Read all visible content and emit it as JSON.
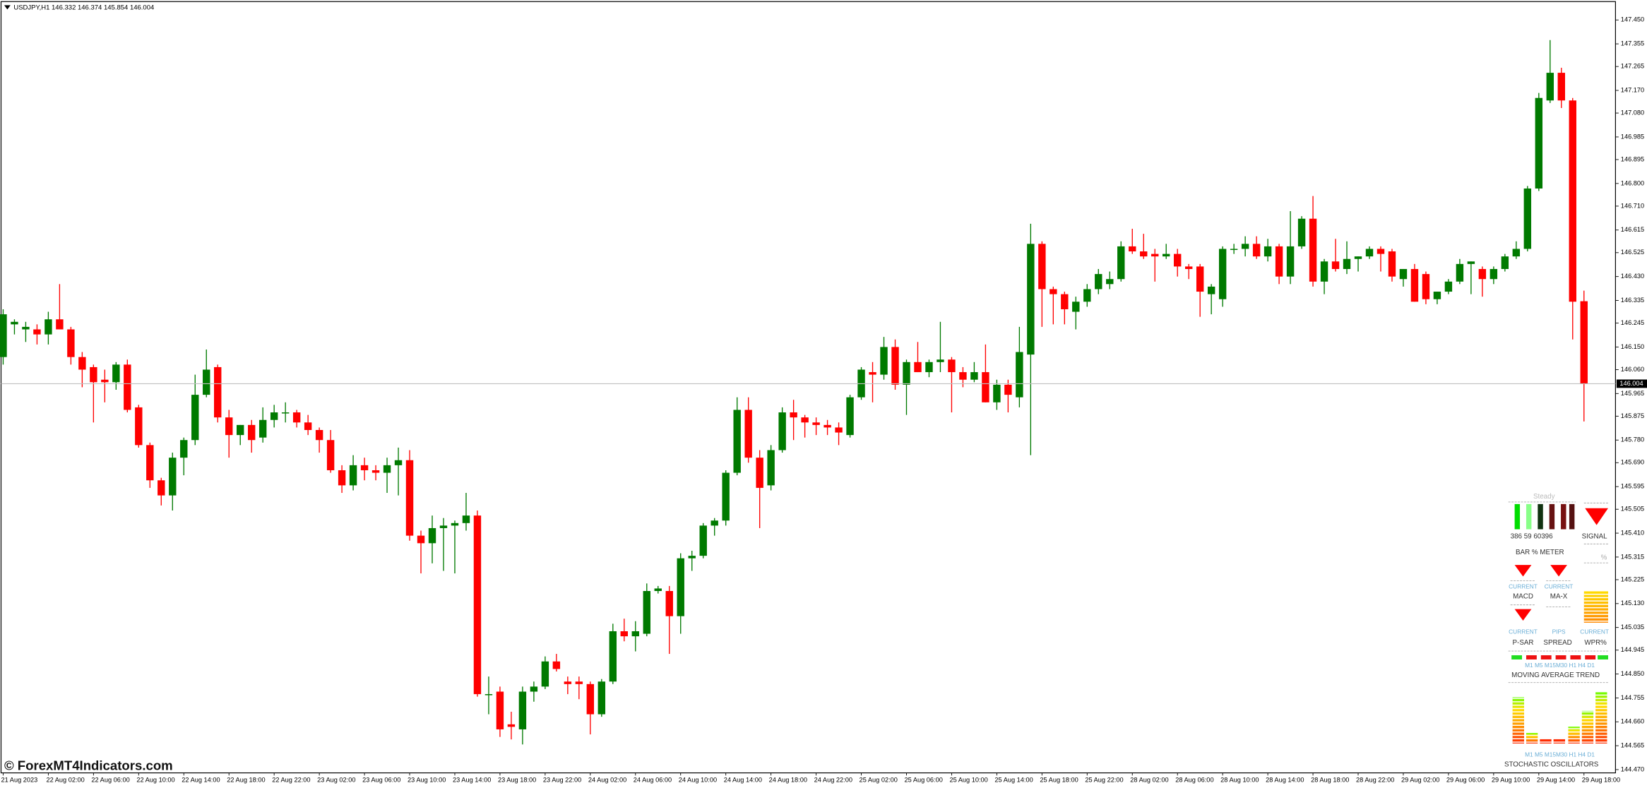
{
  "chart_data": {
    "type": "candlestick",
    "title": "USDJPY,H1 146.332 146.374 145.854 146.004",
    "watermark": "© ForexMT4Indicators.com",
    "up_color": "#007a00",
    "down_color": "#ff0000",
    "grid": false,
    "current_price": 146.004,
    "ylim": [
      144.457,
      147.521
    ],
    "yticks": [
      {
        "value": 147.45,
        "label": "147.450"
      },
      147.355,
      147.265,
      {
        "value": 147.17,
        "label": "147.170"
      },
      {
        "value": 147.08,
        "label": "147.080"
      },
      146.985,
      146.895,
      {
        "value": 146.8,
        "label": "146.800"
      },
      {
        "value": 146.71,
        "label": "146.710"
      },
      146.615,
      146.525,
      {
        "value": 146.43,
        "label": "146.430"
      },
      146.335,
      146.245,
      {
        "value": 146.15,
        "label": "146.150"
      },
      {
        "value": 146.06,
        "label": "146.060"
      },
      145.965,
      145.875,
      {
        "value": 145.78,
        "label": "145.780"
      },
      {
        "value": 145.69,
        "label": "145.690"
      },
      145.595,
      145.505,
      {
        "value": 145.41,
        "label": "145.410"
      },
      145.315,
      145.225,
      {
        "value": 145.13,
        "label": "145.130"
      },
      145.035,
      144.945,
      {
        "value": 144.85,
        "label": "144.850"
      },
      144.755,
      {
        "value": 144.66,
        "label": "144.660"
      },
      144.565,
      {
        "value": 144.47,
        "label": "144.470"
      }
    ],
    "categories": [
      "21 Aug 2023",
      null,
      null,
      null,
      "22 Aug 02:00",
      null,
      null,
      null,
      "22 Aug 06:00",
      null,
      null,
      null,
      "22 Aug 10:00",
      null,
      null,
      null,
      "22 Aug 14:00",
      null,
      null,
      null,
      "22 Aug 18:00",
      null,
      null,
      null,
      "22 Aug 22:00",
      null,
      null,
      null,
      "23 Aug 02:00",
      null,
      null,
      null,
      "23 Aug 06:00",
      null,
      null,
      null,
      "23 Aug 10:00",
      null,
      null,
      null,
      "23 Aug 14:00",
      null,
      null,
      null,
      "23 Aug 18:00",
      null,
      null,
      null,
      "23 Aug 22:00",
      null,
      null,
      null,
      "24 Aug 02:00",
      null,
      null,
      null,
      "24 Aug 06:00",
      null,
      null,
      null,
      "24 Aug 10:00",
      null,
      null,
      null,
      "24 Aug 14:00",
      null,
      null,
      null,
      "24 Aug 18:00",
      null,
      null,
      null,
      "24 Aug 22:00",
      null,
      null,
      null,
      "25 Aug 02:00",
      null,
      null,
      null,
      "25 Aug 06:00",
      null,
      null,
      null,
      "25 Aug 10:00",
      null,
      null,
      null,
      "25 Aug 14:00",
      null,
      null,
      null,
      "25 Aug 18:00",
      null,
      null,
      null,
      "25 Aug 22:00",
      null,
      null,
      null,
      "28 Aug 02:00",
      null,
      null,
      null,
      "28 Aug 06:00",
      null,
      null,
      null,
      "28 Aug 10:00",
      null,
      null,
      null,
      "28 Aug 14:00",
      null,
      null,
      null,
      "28 Aug 18:00",
      null,
      null,
      null,
      "28 Aug 22:00",
      null,
      null,
      null,
      "29 Aug 02:00",
      null,
      null,
      null,
      "29 Aug 06:00",
      null,
      null,
      null,
      "29 Aug 10:00",
      null,
      null,
      null,
      "29 Aug 14:00",
      null,
      null,
      null,
      "29 Aug 18:00"
    ],
    "open": [
      146.11,
      146.24,
      146.22,
      146.22,
      146.2,
      146.26,
      146.22,
      146.11,
      146.07,
      146.02,
      146.01,
      146.08,
      145.91,
      145.76,
      145.62,
      145.56,
      145.71,
      145.78,
      145.96,
      146.07,
      145.87,
      145.8,
      145.84,
      145.79,
      145.86,
      145.89,
      145.89,
      145.85,
      145.82,
      145.78,
      145.66,
      145.6,
      145.68,
      145.66,
      145.65,
      145.68,
      145.7,
      145.4,
      145.37,
      145.43,
      145.44,
      145.45,
      145.48,
      144.77,
      144.78,
      144.65,
      144.63,
      144.78,
      144.8,
      144.9,
      144.82,
      144.82,
      144.81,
      144.69,
      144.82,
      145.02,
      145.0,
      145.01,
      145.18,
      145.18,
      145.08,
      145.31,
      145.32,
      145.44,
      145.46,
      145.65,
      145.9,
      145.71,
      145.6,
      145.74,
      145.89,
      145.87,
      145.85,
      145.84,
      145.83,
      145.8,
      145.95,
      146.05,
      146.04,
      146.15,
      146.0,
      146.09,
      146.05,
      146.09,
      146.1,
      146.05,
      146.02,
      146.05,
      145.93,
      146.0,
      145.95,
      146.12,
      146.56,
      146.38,
      146.36,
      146.29,
      146.33,
      146.38,
      146.4,
      146.42,
      146.55,
      146.53,
      146.52,
      146.51,
      146.52,
      146.47,
      146.47,
      146.36,
      146.34,
      146.54,
      146.54,
      146.56,
      146.51,
      146.55,
      146.43,
      146.55,
      146.66,
      146.41,
      146.49,
      146.46,
      146.5,
      146.51,
      146.54,
      146.53,
      146.42,
      146.46,
      146.44,
      146.34,
      146.37,
      146.41,
      146.48,
      146.46,
      146.42,
      146.46,
      146.51,
      146.54,
      146.78,
      147.13,
      147.24,
      147.13,
      146.332
    ],
    "high": [
      146.3,
      146.26,
      146.25,
      146.24,
      146.29,
      146.4,
      146.23,
      146.13,
      146.08,
      146.06,
      146.09,
      146.1,
      145.92,
      145.77,
      145.63,
      145.73,
      145.79,
      146.04,
      146.14,
      146.08,
      145.9,
      145.84,
      145.86,
      145.91,
      145.92,
      145.93,
      145.9,
      145.88,
      145.83,
      145.82,
      145.68,
      145.72,
      145.71,
      145.68,
      145.71,
      145.75,
      145.74,
      145.42,
      145.48,
      145.47,
      145.46,
      145.57,
      145.5,
      144.84,
      144.8,
      144.7,
      144.8,
      144.82,
      144.92,
      144.93,
      144.84,
      144.84,
      144.82,
      144.83,
      145.05,
      145.07,
      145.06,
      145.21,
      145.2,
      145.2,
      145.33,
      145.34,
      145.45,
      145.47,
      145.66,
      145.95,
      145.95,
      145.74,
      145.76,
      145.91,
      145.94,
      145.88,
      145.87,
      145.86,
      145.85,
      145.96,
      146.07,
      146.09,
      146.19,
      146.18,
      146.1,
      146.17,
      146.1,
      146.25,
      146.11,
      146.07,
      146.09,
      146.16,
      146.02,
      146.02,
      146.23,
      146.64,
      146.57,
      146.39,
      146.37,
      146.35,
      146.4,
      146.46,
      146.45,
      146.57,
      146.62,
      146.6,
      146.54,
      146.56,
      146.54,
      146.48,
      146.48,
      146.4,
      146.55,
      146.56,
      146.59,
      146.59,
      146.58,
      146.56,
      146.69,
      146.67,
      146.75,
      146.5,
      146.58,
      146.57,
      146.51,
      146.55,
      146.55,
      146.54,
      146.46,
      146.48,
      146.45,
      146.37,
      146.42,
      146.5,
      146.49,
      146.47,
      146.47,
      146.52,
      146.57,
      146.79,
      147.16,
      147.37,
      147.26,
      147.14,
      146.374
    ],
    "low": [
      146.08,
      146.2,
      146.17,
      146.16,
      146.16,
      146.22,
      146.08,
      145.99,
      145.85,
      145.93,
      145.98,
      145.89,
      145.75,
      145.59,
      145.52,
      145.5,
      145.64,
      145.76,
      145.95,
      145.85,
      145.71,
      145.76,
      145.73,
      145.77,
      145.83,
      145.85,
      145.83,
      145.8,
      145.73,
      145.65,
      145.57,
      145.58,
      145.62,
      145.62,
      145.57,
      145.56,
      145.38,
      145.25,
      145.29,
      145.26,
      145.25,
      145.42,
      144.76,
      144.69,
      144.6,
      144.59,
      144.57,
      144.74,
      144.79,
      144.86,
      144.77,
      144.75,
      144.61,
      144.68,
      144.81,
      144.98,
      144.94,
      145.0,
      145.17,
      144.93,
      145.01,
      145.26,
      145.31,
      145.4,
      145.44,
      145.64,
      145.69,
      145.43,
      145.58,
      145.73,
      145.78,
      145.79,
      145.8,
      145.8,
      145.76,
      145.79,
      145.94,
      145.93,
      146.02,
      145.98,
      145.88,
      146.05,
      146.03,
      146.05,
      145.89,
      145.99,
      146.01,
      145.93,
      145.9,
      145.89,
      145.91,
      145.72,
      146.23,
      146.24,
      146.24,
      146.22,
      146.31,
      146.36,
      146.38,
      146.41,
      146.52,
      146.5,
      146.41,
      146.5,
      146.43,
      146.42,
      146.27,
      146.28,
      146.31,
      146.52,
      146.51,
      146.5,
      146.49,
      146.4,
      146.4,
      146.54,
      146.39,
      146.36,
      146.45,
      146.44,
      146.45,
      146.5,
      146.45,
      146.41,
      146.39,
      146.33,
      146.32,
      146.32,
      146.36,
      146.4,
      146.36,
      146.35,
      146.4,
      146.45,
      146.5,
      146.53,
      146.77,
      147.12,
      147.1,
      146.18,
      145.854
    ],
    "close": [
      146.28,
      146.25,
      146.23,
      146.2,
      146.26,
      146.22,
      146.11,
      146.06,
      146.01,
      146.01,
      146.08,
      145.9,
      145.76,
      145.62,
      145.56,
      145.71,
      145.78,
      145.96,
      146.06,
      145.87,
      145.8,
      145.84,
      145.78,
      145.86,
      145.89,
      145.89,
      145.85,
      145.82,
      145.78,
      145.66,
      145.6,
      145.68,
      145.66,
      145.65,
      145.68,
      145.7,
      145.4,
      145.37,
      145.43,
      145.44,
      145.45,
      145.48,
      144.77,
      144.77,
      144.63,
      144.64,
      144.78,
      144.8,
      144.9,
      144.87,
      144.81,
      144.81,
      144.69,
      144.82,
      145.02,
      145.0,
      145.02,
      145.18,
      145.19,
      145.08,
      145.31,
      145.32,
      145.44,
      145.46,
      145.65,
      145.9,
      145.71,
      145.59,
      145.74,
      145.89,
      145.87,
      145.85,
      145.84,
      145.83,
      145.81,
      145.95,
      146.06,
      146.04,
      146.15,
      146.0,
      146.09,
      146.05,
      146.09,
      146.1,
      146.05,
      146.02,
      146.05,
      145.93,
      146.0,
      145.96,
      146.13,
      146.56,
      146.38,
      146.36,
      146.3,
      146.33,
      146.38,
      146.44,
      146.42,
      146.55,
      146.53,
      146.51,
      146.51,
      146.52,
      146.47,
      146.46,
      146.37,
      146.39,
      146.54,
      146.54,
      146.56,
      146.51,
      146.55,
      146.43,
      146.55,
      146.66,
      146.41,
      146.49,
      146.46,
      146.5,
      146.51,
      146.54,
      146.52,
      146.43,
      146.46,
      146.33,
      146.34,
      146.37,
      146.41,
      146.48,
      146.49,
      146.42,
      146.46,
      146.51,
      146.54,
      146.78,
      147.14,
      147.24,
      147.13,
      146.33,
      146.004
    ]
  },
  "panel": {
    "header": "Steady",
    "meter_readings": "386  59  60396",
    "bar_meter": "BAR % METER",
    "signal": "SIGNAL",
    "percent": "%",
    "macd_tf": "CURRENT",
    "macd": "MACD",
    "max_tf": "CURRENT",
    "max": "MA-X",
    "psar_tf": "CURRENT",
    "psar": "P-SAR",
    "spread_unit": "PIPS",
    "spread": "SPREAD",
    "wpr_tf": "CURRENT",
    "wpr": "WPR%",
    "ma_timeframes": "M1 M5 M15M30 H1  H4  D1",
    "ma_trend": "MOVING AVERAGE TREND",
    "stoch_timeframes": "M1 M5 M15M30 H1  H4  D1",
    "stoch": "STOCHASTIC OSCILLATORS"
  }
}
